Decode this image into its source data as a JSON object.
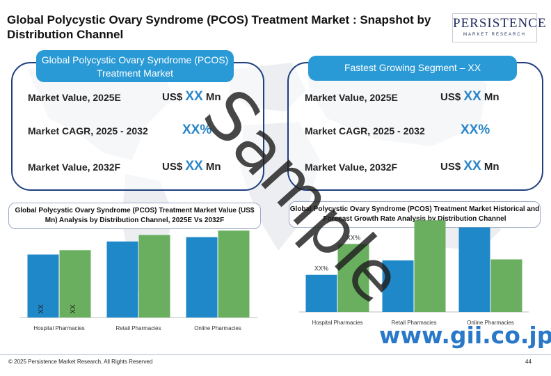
{
  "title": "Global Polycystic Ovary Syndrome (PCOS) Treatment Market : Snapshot by Distribution Channel",
  "logo": {
    "main": "PERSISTENCE",
    "sub": "MARKET RESEARCH"
  },
  "left_card": {
    "header": "Global Polycystic Ovary Syndrome (PCOS) Treatment Market",
    "rows": [
      {
        "label": "Market Value, 2025E",
        "prefix": "US$",
        "value": "XX",
        "suffix": "Mn"
      },
      {
        "label": "Market CAGR, 2025 - 2032",
        "prefix": "",
        "value": "XX%",
        "suffix": ""
      },
      {
        "label": "Market Value, 2032F",
        "prefix": "US$",
        "value": "XX",
        "suffix": "Mn"
      }
    ]
  },
  "right_card": {
    "header": "Fastest Growing Segment – XX",
    "rows": [
      {
        "label": "Market Value, 2025E",
        "prefix": "US$",
        "value": "XX",
        "suffix": "Mn"
      },
      {
        "label": "Market CAGR, 2025 - 2032",
        "prefix": "",
        "value": "XX%",
        "suffix": ""
      },
      {
        "label": "Market Value, 2032F",
        "prefix": "US$",
        "value": "XX",
        "suffix": "Mn"
      }
    ]
  },
  "chart_data": [
    {
      "type": "bar",
      "title": "Global Polycystic Ovary Syndrome (PCOS) Treatment Market Value (US$ Mn) Analysis by Distribution Channel, 2025E Vs 2032F",
      "categories": [
        "Hospital Pharmacies",
        "Retail Pharmacies",
        "Online Pharmacies"
      ],
      "series": [
        {
          "values": [
            58,
            70,
            74
          ],
          "color": "#1f88c9"
        },
        {
          "values": [
            62,
            76,
            80
          ],
          "color": "#6aaf5f"
        }
      ],
      "data_labels": [
        "XX",
        "XX"
      ],
      "ylim": [
        0,
        100
      ]
    },
    {
      "type": "bar",
      "title": "Global Polycystic Ovary Syndrome (PCOS) Treatment Market Historical and Forecast Growth Rate Analysis by Distribution Channel",
      "categories": [
        "Hospital Pharmacies",
        "Retail Pharmacies",
        "Online Pharmacies"
      ],
      "series": [
        {
          "values": [
            36,
            50,
            82
          ],
          "color": "#1f88c9"
        },
        {
          "values": [
            66,
            89,
            51
          ],
          "color": "#6aaf5f"
        }
      ],
      "data_labels": [
        "XX%",
        "XX%"
      ],
      "ylim": [
        0,
        100
      ]
    }
  ],
  "watermark": "Sample",
  "gii": "www.gii.co.jp",
  "footer": "© 2025 Persistence Market Research, All Rights Reserved",
  "page_number": "44"
}
